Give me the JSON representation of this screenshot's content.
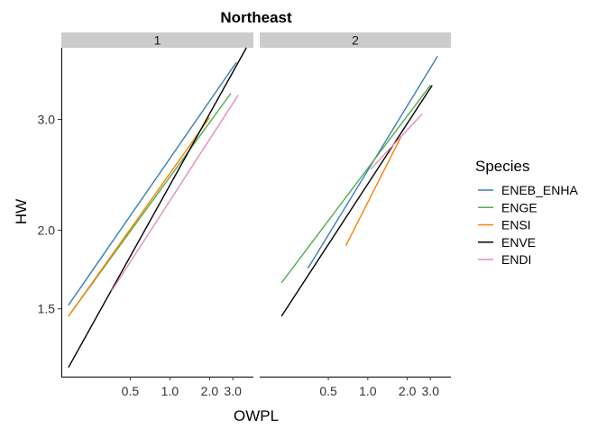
{
  "chart_data": {
    "type": "line",
    "title": "Northeast",
    "xlabel": "OWPL",
    "ylabel": "HW",
    "x_scale": "log",
    "y_scale": "log",
    "x_ticks": [
      0.5,
      1.0,
      2.0,
      3.0
    ],
    "x_tick_labels": [
      "0.5",
      "1.0",
      "2.0",
      "3.0"
    ],
    "y_ticks": [
      1.5,
      2.0,
      3.0
    ],
    "y_tick_labels": [
      "1.5",
      "2.0",
      "3.0"
    ],
    "xlim": [
      0.15,
      4.3
    ],
    "ylim": [
      1.17,
      3.9
    ],
    "grid": false,
    "legend_title": "Species",
    "legend_position": "right",
    "facets": [
      {
        "label": "1",
        "series": [
          {
            "name": "ENEB_ENHA",
            "color": "#377EB8",
            "x": [
              0.17,
              3.2
            ],
            "y": [
              1.52,
              3.7
            ]
          },
          {
            "name": "ENGE",
            "color": "#4DAF4A",
            "x": [
              0.17,
              2.9
            ],
            "y": [
              1.46,
              3.3
            ]
          },
          {
            "name": "ENSI",
            "color": "#FF7F00",
            "x": [
              0.17,
              2.0
            ],
            "y": [
              1.46,
              3.02
            ]
          },
          {
            "name": "ENVE",
            "color": "#000000",
            "x": [
              0.17,
              3.8
            ],
            "y": [
              1.21,
              3.9
            ]
          },
          {
            "name": "ENDI",
            "color": "#E78AC3",
            "x": [
              0.36,
              3.3
            ],
            "y": [
              1.6,
              3.28
            ]
          }
        ]
      },
      {
        "label": "2",
        "series": [
          {
            "name": "ENEB_ENHA",
            "color": "#377EB8",
            "x": [
              0.35,
              3.4
            ],
            "y": [
              1.74,
              3.78
            ]
          },
          {
            "name": "ENGE",
            "color": "#4DAF4A",
            "x": [
              0.22,
              3.0
            ],
            "y": [
              1.65,
              3.4
            ]
          },
          {
            "name": "ENSI",
            "color": "#FF7F00",
            "x": [
              0.68,
              1.8
            ],
            "y": [
              1.89,
              2.82
            ]
          },
          {
            "name": "ENVE",
            "color": "#000000",
            "x": [
              0.22,
              3.1
            ],
            "y": [
              1.46,
              3.4
            ]
          },
          {
            "name": "ENDI",
            "color": "#E78AC3",
            "x": [
              1.05,
              2.6
            ],
            "y": [
              2.5,
              3.06
            ]
          }
        ]
      }
    ]
  }
}
